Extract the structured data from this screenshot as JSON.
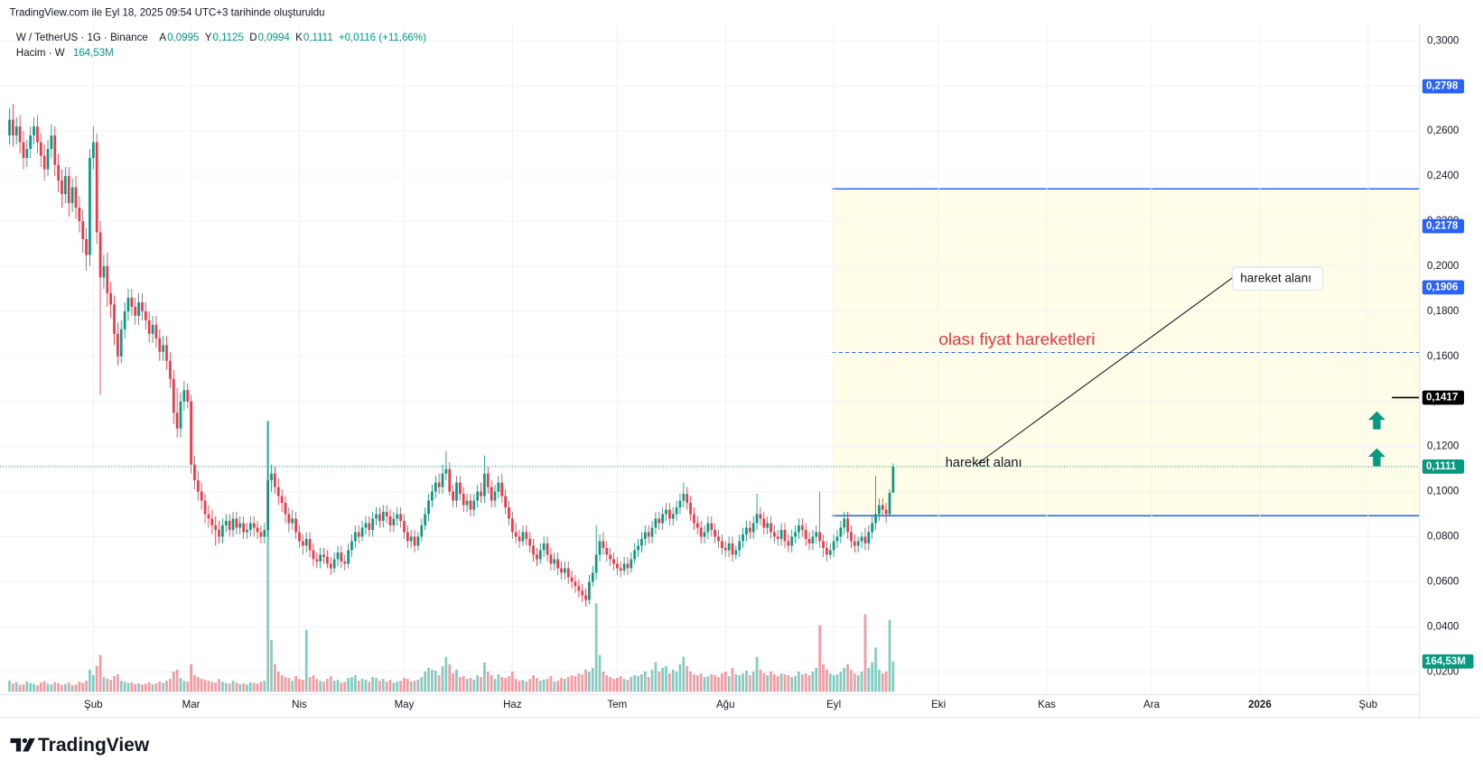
{
  "header": "TradingView.com ile Eyl 18, 2025 09:54 UTC+3 tarihinde oluşturuldu",
  "legend": {
    "symbol": "W / TetherUS · 1G · Binance",
    "fields": [
      {
        "key": "A",
        "value": "0,0995"
      },
      {
        "key": "Y",
        "value": "0,1125"
      },
      {
        "key": "D",
        "value": "0,0994"
      },
      {
        "key": "K",
        "value": "0,1111"
      }
    ],
    "change": "+0,0116 (+11,66%)",
    "volume_name": "Hacim · W",
    "volume_value": "164,53M"
  },
  "chart_data": {
    "type": "candlestick",
    "up_color": "#089981",
    "down_color": "#f23645",
    "open": [
      0.258,
      0.265,
      0.258,
      0.262,
      0.255,
      0.248,
      0.252,
      0.258,
      0.262,
      0.255,
      0.249,
      0.243,
      0.252,
      0.258,
      0.245,
      0.238,
      0.232,
      0.24,
      0.228,
      0.235,
      0.226,
      0.22,
      0.212,
      0.205,
      0.248,
      0.255,
      0.215,
      0.195,
      0.2,
      0.188,
      0.183,
      0.17,
      0.16,
      0.172,
      0.18,
      0.186,
      0.182,
      0.178,
      0.184,
      0.18,
      0.176,
      0.17,
      0.174,
      0.168,
      0.162,
      0.165,
      0.158,
      0.15,
      0.135,
      0.128,
      0.14,
      0.145,
      0.14,
      0.112,
      0.105,
      0.1,
      0.096,
      0.09,
      0.088,
      0.085,
      0.083,
      0.08,
      0.085,
      0.087,
      0.083,
      0.088,
      0.084,
      0.086,
      0.082,
      0.083,
      0.086,
      0.084,
      0.082,
      0.08,
      0.083,
      0.105,
      0.108,
      0.102,
      0.098,
      0.095,
      0.09,
      0.086,
      0.088,
      0.082,
      0.078,
      0.076,
      0.079,
      0.074,
      0.07,
      0.069,
      0.072,
      0.071,
      0.068,
      0.066,
      0.07,
      0.073,
      0.069,
      0.068,
      0.074,
      0.078,
      0.082,
      0.08,
      0.084,
      0.086,
      0.083,
      0.088,
      0.09,
      0.087,
      0.091,
      0.089,
      0.085,
      0.088,
      0.09,
      0.087,
      0.082,
      0.078,
      0.08,
      0.076,
      0.08,
      0.085,
      0.09,
      0.096,
      0.1,
      0.104,
      0.102,
      0.108,
      0.11,
      0.1,
      0.096,
      0.104,
      0.099,
      0.094,
      0.096,
      0.092,
      0.096,
      0.1,
      0.098,
      0.108,
      0.102,
      0.096,
      0.1,
      0.104,
      0.098,
      0.093,
      0.088,
      0.082,
      0.08,
      0.078,
      0.082,
      0.079,
      0.076,
      0.072,
      0.07,
      0.074,
      0.077,
      0.072,
      0.068,
      0.07,
      0.066,
      0.064,
      0.066,
      0.062,
      0.06,
      0.058,
      0.056,
      0.054,
      0.052,
      0.06,
      0.064,
      0.072,
      0.078,
      0.075,
      0.072,
      0.07,
      0.068,
      0.066,
      0.065,
      0.068,
      0.066,
      0.07,
      0.074,
      0.076,
      0.079,
      0.082,
      0.08,
      0.084,
      0.088,
      0.086,
      0.09,
      0.092,
      0.088,
      0.09,
      0.093,
      0.096,
      0.099,
      0.095,
      0.09,
      0.086,
      0.084,
      0.08,
      0.082,
      0.086,
      0.083,
      0.08,
      0.078,
      0.075,
      0.074,
      0.077,
      0.072,
      0.074,
      0.078,
      0.081,
      0.084,
      0.082,
      0.086,
      0.09,
      0.088,
      0.084,
      0.086,
      0.082,
      0.08,
      0.079,
      0.083,
      0.078,
      0.076,
      0.08,
      0.082,
      0.085,
      0.083,
      0.079,
      0.077,
      0.08,
      0.082,
      0.078,
      0.075,
      0.072,
      0.074,
      0.078,
      0.08,
      0.084,
      0.088,
      0.082,
      0.078,
      0.076,
      0.078,
      0.08,
      0.077,
      0.082,
      0.086,
      0.09,
      0.094,
      0.092,
      0.09,
      0.0995
    ],
    "high": [
      0.27,
      0.272,
      0.266,
      0.267,
      0.26,
      0.256,
      0.262,
      0.266,
      0.267,
      0.259,
      0.254,
      0.256,
      0.263,
      0.262,
      0.25,
      0.243,
      0.244,
      0.244,
      0.239,
      0.24,
      0.231,
      0.225,
      0.217,
      0.252,
      0.262,
      0.259,
      0.22,
      0.205,
      0.206,
      0.193,
      0.187,
      0.175,
      0.176,
      0.184,
      0.19,
      0.19,
      0.186,
      0.188,
      0.188,
      0.184,
      0.18,
      0.178,
      0.178,
      0.172,
      0.169,
      0.169,
      0.162,
      0.154,
      0.146,
      0.144,
      0.149,
      0.148,
      0.143,
      0.116,
      0.109,
      0.104,
      0.099,
      0.094,
      0.092,
      0.089,
      0.087,
      0.088,
      0.09,
      0.09,
      0.091,
      0.091,
      0.089,
      0.089,
      0.086,
      0.089,
      0.089,
      0.087,
      0.085,
      0.086,
      0.131,
      0.112,
      0.111,
      0.106,
      0.101,
      0.098,
      0.093,
      0.092,
      0.091,
      0.085,
      0.081,
      0.082,
      0.082,
      0.077,
      0.073,
      0.075,
      0.075,
      0.074,
      0.071,
      0.073,
      0.076,
      0.076,
      0.072,
      0.077,
      0.081,
      0.085,
      0.085,
      0.087,
      0.089,
      0.089,
      0.091,
      0.093,
      0.093,
      0.094,
      0.094,
      0.092,
      0.091,
      0.093,
      0.093,
      0.09,
      0.085,
      0.083,
      0.083,
      0.082,
      0.088,
      0.093,
      0.099,
      0.103,
      0.107,
      0.108,
      0.112,
      0.118,
      0.113,
      0.103,
      0.107,
      0.107,
      0.102,
      0.099,
      0.099,
      0.099,
      0.103,
      0.104,
      0.116,
      0.111,
      0.105,
      0.103,
      0.107,
      0.108,
      0.101,
      0.096,
      0.091,
      0.086,
      0.083,
      0.085,
      0.085,
      0.082,
      0.079,
      0.075,
      0.077,
      0.08,
      0.08,
      0.075,
      0.073,
      0.073,
      0.069,
      0.069,
      0.069,
      0.065,
      0.063,
      0.061,
      0.059,
      0.057,
      0.063,
      0.067,
      0.085,
      0.081,
      0.082,
      0.078,
      0.075,
      0.073,
      0.071,
      0.069,
      0.071,
      0.071,
      0.073,
      0.077,
      0.079,
      0.082,
      0.085,
      0.085,
      0.087,
      0.091,
      0.091,
      0.093,
      0.095,
      0.095,
      0.093,
      0.096,
      0.099,
      0.104,
      0.102,
      0.098,
      0.093,
      0.089,
      0.087,
      0.085,
      0.089,
      0.089,
      0.086,
      0.083,
      0.081,
      0.078,
      0.08,
      0.08,
      0.076,
      0.081,
      0.084,
      0.087,
      0.087,
      0.089,
      0.099,
      0.093,
      0.091,
      0.089,
      0.089,
      0.085,
      0.083,
      0.086,
      0.086,
      0.081,
      0.083,
      0.085,
      0.088,
      0.088,
      0.086,
      0.082,
      0.083,
      0.085,
      0.1,
      0.081,
      0.078,
      0.077,
      0.081,
      0.083,
      0.087,
      0.091,
      0.091,
      0.085,
      0.081,
      0.08,
      0.082,
      0.084,
      0.085,
      0.089,
      0.107,
      0.097,
      0.097,
      0.095,
      0.101,
      0.1125
    ],
    "low": [
      0.254,
      0.253,
      0.254,
      0.25,
      0.243,
      0.244,
      0.248,
      0.254,
      0.25,
      0.244,
      0.238,
      0.24,
      0.248,
      0.24,
      0.233,
      0.226,
      0.228,
      0.222,
      0.224,
      0.221,
      0.215,
      0.206,
      0.198,
      0.2,
      0.243,
      0.21,
      0.143,
      0.19,
      0.182,
      0.177,
      0.165,
      0.156,
      0.157,
      0.168,
      0.176,
      0.178,
      0.174,
      0.174,
      0.176,
      0.172,
      0.166,
      0.166,
      0.164,
      0.158,
      0.158,
      0.154,
      0.146,
      0.13,
      0.124,
      0.124,
      0.136,
      0.137,
      0.108,
      0.101,
      0.096,
      0.092,
      0.086,
      0.084,
      0.081,
      0.076,
      0.077,
      0.077,
      0.082,
      0.08,
      0.08,
      0.081,
      0.081,
      0.079,
      0.079,
      0.08,
      0.08,
      0.079,
      0.077,
      0.077,
      0.08,
      0.1,
      0.099,
      0.094,
      0.091,
      0.086,
      0.082,
      0.083,
      0.079,
      0.075,
      0.072,
      0.073,
      0.071,
      0.067,
      0.066,
      0.066,
      0.068,
      0.066,
      0.063,
      0.064,
      0.067,
      0.066,
      0.065,
      0.066,
      0.071,
      0.075,
      0.077,
      0.078,
      0.081,
      0.08,
      0.08,
      0.085,
      0.084,
      0.084,
      0.086,
      0.082,
      0.082,
      0.085,
      0.084,
      0.079,
      0.075,
      0.075,
      0.073,
      0.074,
      0.078,
      0.083,
      0.087,
      0.093,
      0.097,
      0.099,
      0.099,
      0.105,
      0.098,
      0.093,
      0.093,
      0.096,
      0.091,
      0.091,
      0.089,
      0.089,
      0.093,
      0.095,
      0.095,
      0.099,
      0.093,
      0.093,
      0.097,
      0.095,
      0.09,
      0.085,
      0.079,
      0.077,
      0.075,
      0.076,
      0.076,
      0.073,
      0.069,
      0.067,
      0.068,
      0.071,
      0.069,
      0.065,
      0.065,
      0.063,
      0.061,
      0.061,
      0.059,
      0.057,
      0.055,
      0.053,
      0.051,
      0.049,
      0.05,
      0.058,
      0.061,
      0.069,
      0.072,
      0.069,
      0.067,
      0.065,
      0.063,
      0.062,
      0.063,
      0.063,
      0.064,
      0.068,
      0.071,
      0.073,
      0.076,
      0.077,
      0.077,
      0.081,
      0.083,
      0.083,
      0.087,
      0.085,
      0.085,
      0.087,
      0.09,
      0.093,
      0.092,
      0.087,
      0.083,
      0.081,
      0.077,
      0.077,
      0.079,
      0.08,
      0.077,
      0.075,
      0.072,
      0.071,
      0.071,
      0.069,
      0.07,
      0.071,
      0.075,
      0.078,
      0.079,
      0.079,
      0.083,
      0.085,
      0.081,
      0.081,
      0.079,
      0.077,
      0.076,
      0.076,
      0.075,
      0.073,
      0.073,
      0.077,
      0.079,
      0.08,
      0.076,
      0.074,
      0.074,
      0.077,
      0.075,
      0.071,
      0.069,
      0.07,
      0.071,
      0.075,
      0.077,
      0.081,
      0.079,
      0.075,
      0.073,
      0.073,
      0.075,
      0.074,
      0.074,
      0.079,
      0.083,
      0.087,
      0.089,
      0.086,
      0.089,
      0.0994
    ],
    "close": [
      0.265,
      0.258,
      0.262,
      0.255,
      0.248,
      0.252,
      0.258,
      0.262,
      0.255,
      0.249,
      0.243,
      0.252,
      0.258,
      0.245,
      0.238,
      0.232,
      0.24,
      0.228,
      0.235,
      0.226,
      0.22,
      0.212,
      0.205,
      0.248,
      0.255,
      0.215,
      0.195,
      0.2,
      0.188,
      0.183,
      0.17,
      0.16,
      0.172,
      0.18,
      0.186,
      0.182,
      0.178,
      0.184,
      0.18,
      0.176,
      0.17,
      0.174,
      0.168,
      0.162,
      0.165,
      0.158,
      0.15,
      0.135,
      0.128,
      0.14,
      0.145,
      0.14,
      0.112,
      0.105,
      0.1,
      0.096,
      0.09,
      0.088,
      0.085,
      0.083,
      0.08,
      0.085,
      0.087,
      0.083,
      0.088,
      0.084,
      0.086,
      0.082,
      0.083,
      0.086,
      0.084,
      0.082,
      0.08,
      0.083,
      0.105,
      0.108,
      0.102,
      0.098,
      0.095,
      0.09,
      0.086,
      0.088,
      0.082,
      0.078,
      0.076,
      0.079,
      0.074,
      0.07,
      0.069,
      0.072,
      0.071,
      0.068,
      0.066,
      0.07,
      0.073,
      0.069,
      0.068,
      0.074,
      0.078,
      0.082,
      0.08,
      0.084,
      0.086,
      0.083,
      0.088,
      0.09,
      0.087,
      0.091,
      0.089,
      0.085,
      0.088,
      0.09,
      0.087,
      0.082,
      0.078,
      0.08,
      0.076,
      0.08,
      0.085,
      0.09,
      0.096,
      0.1,
      0.104,
      0.102,
      0.108,
      0.11,
      0.1,
      0.096,
      0.104,
      0.099,
      0.094,
      0.096,
      0.092,
      0.096,
      0.1,
      0.098,
      0.108,
      0.102,
      0.096,
      0.1,
      0.104,
      0.098,
      0.093,
      0.088,
      0.082,
      0.08,
      0.078,
      0.082,
      0.079,
      0.076,
      0.072,
      0.07,
      0.074,
      0.077,
      0.072,
      0.068,
      0.07,
      0.066,
      0.064,
      0.066,
      0.062,
      0.06,
      0.058,
      0.056,
      0.054,
      0.052,
      0.06,
      0.064,
      0.072,
      0.078,
      0.075,
      0.072,
      0.07,
      0.068,
      0.066,
      0.065,
      0.068,
      0.066,
      0.07,
      0.074,
      0.076,
      0.079,
      0.082,
      0.08,
      0.084,
      0.088,
      0.086,
      0.09,
      0.092,
      0.088,
      0.09,
      0.093,
      0.096,
      0.099,
      0.095,
      0.09,
      0.086,
      0.084,
      0.08,
      0.082,
      0.086,
      0.083,
      0.08,
      0.078,
      0.075,
      0.074,
      0.077,
      0.072,
      0.074,
      0.078,
      0.081,
      0.084,
      0.082,
      0.086,
      0.09,
      0.088,
      0.084,
      0.086,
      0.082,
      0.08,
      0.079,
      0.083,
      0.078,
      0.076,
      0.08,
      0.082,
      0.085,
      0.083,
      0.079,
      0.077,
      0.08,
      0.082,
      0.078,
      0.075,
      0.072,
      0.074,
      0.078,
      0.08,
      0.084,
      0.088,
      0.082,
      0.078,
      0.076,
      0.078,
      0.08,
      0.077,
      0.082,
      0.086,
      0.09,
      0.094,
      0.092,
      0.09,
      0.0995,
      0.1111
    ],
    "volume": {
      "values": [
        60,
        45,
        52,
        38,
        40,
        55,
        48,
        42,
        35,
        50,
        58,
        44,
        40,
        52,
        46,
        38,
        42,
        50,
        36,
        40,
        55,
        48,
        60,
        120,
        90,
        140,
        200,
        80,
        70,
        65,
        85,
        95,
        60,
        55,
        48,
        50,
        42,
        46,
        40,
        44,
        52,
        40,
        46,
        55,
        48,
        60,
        70,
        110,
        120,
        75,
        60,
        55,
        150,
        90,
        80,
        70,
        65,
        60,
        55,
        50,
        70,
        55,
        48,
        45,
        60,
        50,
        42,
        46,
        40,
        52,
        48,
        45,
        55,
        60,
        1470,
        280,
        150,
        110,
        90,
        80,
        75,
        60,
        85,
        70,
        65,
        335,
        80,
        90,
        70,
        60,
        55,
        70,
        85,
        60,
        65,
        50,
        55,
        75,
        80,
        90,
        60,
        70,
        65,
        55,
        80,
        75,
        60,
        70,
        55,
        65,
        50,
        55,
        60,
        75,
        70,
        55,
        60,
        65,
        80,
        110,
        130,
        120,
        115,
        90,
        140,
        190,
        150,
        100,
        120,
        80,
        85,
        70,
        75,
        65,
        90,
        80,
        160,
        110,
        90,
        70,
        95,
        80,
        75,
        85,
        110,
        70,
        60,
        65,
        55,
        70,
        90,
        75,
        60,
        65,
        70,
        85,
        55,
        60,
        75,
        70,
        80,
        90,
        85,
        100,
        95,
        120,
        110,
        130,
        480,
        200,
        110,
        90,
        80,
        70,
        75,
        85,
        70,
        65,
        80,
        90,
        85,
        95,
        110,
        80,
        120,
        160,
        110,
        130,
        140,
        100,
        120,
        110,
        150,
        190,
        140,
        110,
        95,
        90,
        100,
        80,
        85,
        95,
        90,
        80,
        100,
        110,
        85,
        130,
        95,
        90,
        100,
        115,
        90,
        110,
        190,
        120,
        100,
        90,
        110,
        95,
        85,
        100,
        95,
        90,
        80,
        85,
        110,
        95,
        100,
        90,
        110,
        130,
        360,
        150,
        120,
        100,
        90,
        95,
        110,
        130,
        150,
        120,
        100,
        90,
        110,
        420,
        130,
        160,
        240,
        120,
        100,
        110,
        390,
        164.53
      ],
      "last_label": {
        "value": 164.53,
        "label": "164,53M"
      }
    },
    "xlim": [
      -2.71,
      403.7
    ],
    "xticks": [
      {
        "value": 24,
        "label": "Şub"
      },
      {
        "value": 52,
        "label": "Mar"
      },
      {
        "value": 83,
        "label": "Nis"
      },
      {
        "value": 113,
        "label": "May"
      },
      {
        "value": 144,
        "label": "Haz"
      },
      {
        "value": 174,
        "label": "Tem"
      },
      {
        "value": 205,
        "label": "Ağu"
      },
      {
        "value": 236,
        "label": "Eyl"
      },
      {
        "value": 266,
        "label": "Eki"
      },
      {
        "value": 297,
        "label": "Kas"
      },
      {
        "value": 327,
        "label": "Ara"
      },
      {
        "value": 358,
        "label": "2026"
      },
      {
        "value": 389,
        "label": "Şub"
      }
    ],
    "ylim": [
      0.0099,
      0.3076
    ],
    "yticks": [
      {
        "value": 0.02,
        "label": "0,0200"
      },
      {
        "value": 0.04,
        "label": "0,0400"
      },
      {
        "value": 0.06,
        "label": "0,0600"
      },
      {
        "value": 0.08,
        "label": "0,0800"
      },
      {
        "value": 0.1,
        "label": "0,1000"
      },
      {
        "value": 0.12,
        "label": "0,1200"
      },
      {
        "value": 0.14,
        "label": "0,1400"
      },
      {
        "value": 0.16,
        "label": "0,1600"
      },
      {
        "value": 0.18,
        "label": "0,1800"
      },
      {
        "value": 0.2,
        "label": "0,2000"
      },
      {
        "value": 0.22,
        "label": "0,2200"
      },
      {
        "value": 0.24,
        "label": "0,2400"
      },
      {
        "value": 0.26,
        "label": "0,2600"
      },
      {
        "value": 0.28,
        "label": "0,2800"
      },
      {
        "value": 0.3,
        "label": "0,3000"
      }
    ],
    "grid": true,
    "price_labels": [
      {
        "value": 0.2798,
        "label": "0,2798",
        "color": "#2962ff"
      },
      {
        "value": 0.2178,
        "label": "0,2178",
        "color": "#2962ff"
      },
      {
        "value": 0.1906,
        "label": "0,1906",
        "color": "#2962ff"
      },
      {
        "value": 0.1417,
        "label": "0,1417",
        "color": "#000000",
        "line": "ray"
      },
      {
        "value": 0.1111,
        "label": "0,1111",
        "color": "#089981",
        "line": "dotted"
      }
    ],
    "zone": {
      "x_start": 235.5,
      "top": 0.2343,
      "bottom": 0.0893,
      "middle": 0.1617,
      "color": "#2962ff",
      "fill": "#fffde8"
    },
    "annotations": {
      "title": "olası fiyat hareketleri",
      "label_left": "hareket alanı",
      "label_right": "hareket alanı"
    }
  },
  "footer": {
    "brand": "TradingView"
  }
}
